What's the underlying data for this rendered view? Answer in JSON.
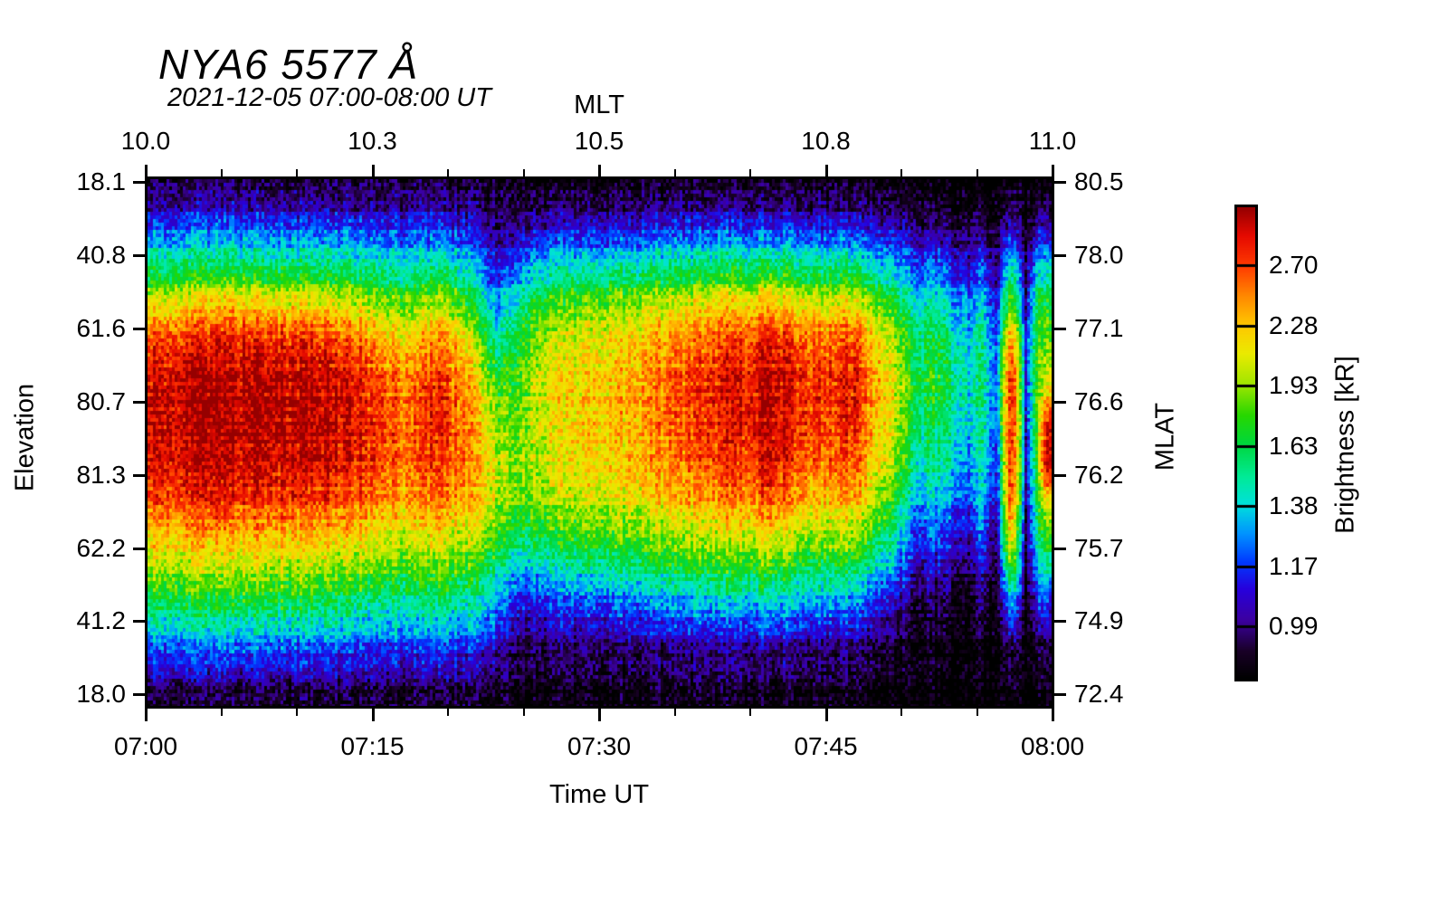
{
  "title": "NYA6 5577 Å",
  "subtitle": "2021-12-05 07:00-08:00 UT",
  "axes": {
    "top": {
      "label": "MLT",
      "ticks": [
        "10.0",
        "10.3",
        "10.5",
        "10.8",
        "11.0"
      ]
    },
    "bottom": {
      "label": "Time UT",
      "ticks": [
        "07:00",
        "07:15",
        "07:30",
        "07:45",
        "08:00"
      ]
    },
    "left": {
      "label": "Elevation",
      "ticks": [
        "18.1",
        "40.8",
        "61.6",
        "80.7",
        "81.3",
        "62.2",
        "41.2",
        "18.0"
      ]
    },
    "right": {
      "label": "MLAT",
      "ticks": [
        "80.5",
        "78.0",
        "77.1",
        "76.6",
        "76.2",
        "75.7",
        "74.9",
        "72.4"
      ]
    }
  },
  "colorbar": {
    "label": "Brightness [kR]",
    "ticks": [
      "2.70",
      "2.28",
      "1.93",
      "1.63",
      "1.38",
      "1.17",
      "0.99"
    ],
    "scale": "log",
    "range_kR": [
      0.85,
      3.2
    ]
  },
  "chart_data": {
    "type": "heatmap",
    "title": "NYA6 5577 Å",
    "xlabel": "Time UT",
    "ylabel": "Elevation",
    "x_start": "07:00",
    "x_end": "08:00",
    "value_units": "kR",
    "value_scale": "log",
    "value_range": [
      0.85,
      3.2
    ],
    "rows": 14,
    "row_order": "top-to-bottom (elevation 18.1 N -> 80.7 zenith -> 18.0 S)",
    "x_minutes": [
      0,
      2,
      4,
      6,
      8,
      10,
      12,
      14,
      16,
      17.5,
      19,
      20.5,
      22,
      23,
      24,
      25,
      26,
      28,
      30,
      32,
      34,
      36,
      38,
      40,
      41.3,
      42.5,
      44,
      45.5,
      46.8,
      48,
      49.5,
      51,
      52.5,
      53.5,
      54.5,
      55.5,
      56.4,
      57.3,
      58.3,
      59.0,
      59.6,
      60
    ],
    "values_kR": [
      [
        0.97,
        1.25,
        1.6,
        2.2,
        2.7,
        2.95,
        3.0,
        2.95,
        2.7,
        2.25,
        1.85,
        1.5,
        1.18,
        0.93
      ],
      [
        0.97,
        1.27,
        1.63,
        2.3,
        2.85,
        3.08,
        3.12,
        3.05,
        2.78,
        2.33,
        1.9,
        1.55,
        1.2,
        0.94
      ],
      [
        0.97,
        1.28,
        1.65,
        2.35,
        2.9,
        3.12,
        3.16,
        3.08,
        2.8,
        2.35,
        1.92,
        1.56,
        1.2,
        0.94
      ],
      [
        0.97,
        1.28,
        1.66,
        2.38,
        2.92,
        3.15,
        3.18,
        3.1,
        2.82,
        2.36,
        1.93,
        1.57,
        1.21,
        0.94
      ],
      [
        0.96,
        1.27,
        1.64,
        2.33,
        2.88,
        3.1,
        3.14,
        3.06,
        2.79,
        2.33,
        1.9,
        1.55,
        1.2,
        0.94
      ],
      [
        0.96,
        1.26,
        1.63,
        2.32,
        2.87,
        3.1,
        3.13,
        3.05,
        2.78,
        2.32,
        1.89,
        1.54,
        1.19,
        0.93
      ],
      [
        0.96,
        1.25,
        1.6,
        2.25,
        2.78,
        3.02,
        3.06,
        3.0,
        2.72,
        2.27,
        1.85,
        1.51,
        1.18,
        0.93
      ],
      [
        0.95,
        1.23,
        1.57,
        2.15,
        2.65,
        2.9,
        2.95,
        2.9,
        2.63,
        2.2,
        1.8,
        1.48,
        1.16,
        0.93
      ],
      [
        0.94,
        1.2,
        1.5,
        1.95,
        2.35,
        2.6,
        2.68,
        2.65,
        2.45,
        2.08,
        1.72,
        1.42,
        1.13,
        0.92
      ],
      [
        0.94,
        1.18,
        1.46,
        1.88,
        2.25,
        2.48,
        2.56,
        2.55,
        2.38,
        2.02,
        1.68,
        1.4,
        1.12,
        0.92
      ],
      [
        0.95,
        1.2,
        1.52,
        2.05,
        2.5,
        2.75,
        2.82,
        2.78,
        2.55,
        2.12,
        1.74,
        1.44,
        1.14,
        0.92
      ],
      [
        0.94,
        1.18,
        1.48,
        1.95,
        2.35,
        2.58,
        2.65,
        2.62,
        2.42,
        2.05,
        1.7,
        1.41,
        1.12,
        0.92
      ],
      [
        0.92,
        1.1,
        1.3,
        1.6,
        1.9,
        2.15,
        2.3,
        2.35,
        2.25,
        1.95,
        1.62,
        1.35,
        1.09,
        0.91
      ],
      [
        0.9,
        1.0,
        1.12,
        1.3,
        1.55,
        1.8,
        2.0,
        2.1,
        2.05,
        1.8,
        1.5,
        1.26,
        1.05,
        0.9
      ],
      [
        0.9,
        1.02,
        1.18,
        1.4,
        1.58,
        1.72,
        1.85,
        1.92,
        1.88,
        1.65,
        1.35,
        1.12,
        0.98,
        0.89
      ],
      [
        0.9,
        1.08,
        1.32,
        1.62,
        1.8,
        1.9,
        1.95,
        1.95,
        1.88,
        1.62,
        1.3,
        1.08,
        0.95,
        0.88
      ],
      [
        0.91,
        1.12,
        1.42,
        1.78,
        1.98,
        2.08,
        2.1,
        2.08,
        1.95,
        1.68,
        1.35,
        1.1,
        0.95,
        0.88
      ],
      [
        0.91,
        1.15,
        1.48,
        1.9,
        2.12,
        2.22,
        2.24,
        2.2,
        2.05,
        1.76,
        1.4,
        1.13,
        0.96,
        0.88
      ],
      [
        0.91,
        1.15,
        1.5,
        1.95,
        2.18,
        2.28,
        2.3,
        2.26,
        2.1,
        1.8,
        1.43,
        1.14,
        0.96,
        0.88
      ],
      [
        0.91,
        1.16,
        1.52,
        2.0,
        2.25,
        2.35,
        2.36,
        2.3,
        2.14,
        1.83,
        1.46,
        1.16,
        0.96,
        0.88
      ],
      [
        0.92,
        1.18,
        1.56,
        2.1,
        2.4,
        2.52,
        2.52,
        2.45,
        2.25,
        1.9,
        1.52,
        1.2,
        0.98,
        0.89
      ],
      [
        0.92,
        1.2,
        1.6,
        2.2,
        2.55,
        2.7,
        2.7,
        2.6,
        2.36,
        1.97,
        1.57,
        1.24,
        0.99,
        0.89
      ],
      [
        0.92,
        1.22,
        1.63,
        2.3,
        2.7,
        2.85,
        2.85,
        2.74,
        2.45,
        2.03,
        1.61,
        1.26,
        1.0,
        0.9
      ],
      [
        0.93,
        1.23,
        1.65,
        2.35,
        2.8,
        2.95,
        2.94,
        2.82,
        2.52,
        2.07,
        1.63,
        1.27,
        1.0,
        0.9
      ],
      [
        0.93,
        1.25,
        1.72,
        2.5,
        3.0,
        3.18,
        3.18,
        3.08,
        2.75,
        2.22,
        1.7,
        1.3,
        1.01,
        0.9
      ],
      [
        0.92,
        1.22,
        1.64,
        2.32,
        2.76,
        2.92,
        2.9,
        2.78,
        2.48,
        2.04,
        1.61,
        1.25,
        0.99,
        0.89
      ],
      [
        0.92,
        1.2,
        1.6,
        2.24,
        2.65,
        2.8,
        2.78,
        2.66,
        2.38,
        1.97,
        1.56,
        1.22,
        0.97,
        0.89
      ],
      [
        0.91,
        1.18,
        1.56,
        2.16,
        2.55,
        2.7,
        2.68,
        2.56,
        2.28,
        1.9,
        1.51,
        1.18,
        0.95,
        0.88
      ],
      [
        0.91,
        1.19,
        1.6,
        2.28,
        2.75,
        2.92,
        2.88,
        2.72,
        2.4,
        1.96,
        1.53,
        1.19,
        0.95,
        0.88
      ],
      [
        0.9,
        1.14,
        1.48,
        2.0,
        2.32,
        2.45,
        2.42,
        2.3,
        2.05,
        1.72,
        1.38,
        1.1,
        0.92,
        0.87
      ],
      [
        0.89,
        1.1,
        1.38,
        1.78,
        2.02,
        2.12,
        2.08,
        1.97,
        1.76,
        1.5,
        1.24,
        1.02,
        0.89,
        0.86
      ],
      [
        0.87,
        1.03,
        1.22,
        1.45,
        1.58,
        1.63,
        1.58,
        1.48,
        1.32,
        1.15,
        1.0,
        0.89,
        0.86,
        0.85
      ],
      [
        0.86,
        1.02,
        1.25,
        1.5,
        1.62,
        1.68,
        1.62,
        1.52,
        1.38,
        1.2,
        1.02,
        0.9,
        0.85,
        0.84
      ],
      [
        0.85,
        0.98,
        1.15,
        1.35,
        1.48,
        1.52,
        1.48,
        1.4,
        1.26,
        1.1,
        0.96,
        0.87,
        0.84,
        0.84
      ],
      [
        0.85,
        0.96,
        1.1,
        1.28,
        1.38,
        1.42,
        1.4,
        1.32,
        1.18,
        1.04,
        0.92,
        0.86,
        0.84,
        0.84
      ],
      [
        0.86,
        1.0,
        1.2,
        1.4,
        1.5,
        1.55,
        1.52,
        1.45,
        1.35,
        1.2,
        1.05,
        0.92,
        0.86,
        0.84
      ],
      [
        0.84,
        0.9,
        0.98,
        1.08,
        1.15,
        1.18,
        1.16,
        1.1,
        1.02,
        0.94,
        0.88,
        0.85,
        0.84,
        0.84
      ],
      [
        0.88,
        1.15,
        1.55,
        2.0,
        2.6,
        2.9,
        2.95,
        2.9,
        2.75,
        2.3,
        1.7,
        1.25,
        0.95,
        0.86
      ],
      [
        0.84,
        0.89,
        0.95,
        1.02,
        1.08,
        1.1,
        1.08,
        1.04,
        0.98,
        0.92,
        0.87,
        0.85,
        0.84,
        0.84
      ],
      [
        0.87,
        1.05,
        1.35,
        1.6,
        1.72,
        1.78,
        1.75,
        1.7,
        1.6,
        1.45,
        1.25,
        1.05,
        0.88,
        0.85
      ],
      [
        0.87,
        1.08,
        1.4,
        1.7,
        1.85,
        2.0,
        2.75,
        3.05,
        2.1,
        1.7,
        1.4,
        1.08,
        0.89,
        0.85
      ],
      [
        0.86,
        1.05,
        1.35,
        1.65,
        1.8,
        2.1,
        2.9,
        3.1,
        2.2,
        1.65,
        1.35,
        1.05,
        0.88,
        0.84
      ]
    ],
    "colormap_stops": [
      [
        0.0,
        "#000000"
      ],
      [
        0.06,
        "#1a0028"
      ],
      [
        0.125,
        "#3c00a0"
      ],
      [
        0.19,
        "#2800dc"
      ],
      [
        0.25,
        "#003cff"
      ],
      [
        0.31,
        "#0096ff"
      ],
      [
        0.37,
        "#00e1dc"
      ],
      [
        0.43,
        "#00eb96"
      ],
      [
        0.5,
        "#00d73c"
      ],
      [
        0.56,
        "#28d700"
      ],
      [
        0.625,
        "#a0e600"
      ],
      [
        0.69,
        "#ebeb00"
      ],
      [
        0.75,
        "#ffc800"
      ],
      [
        0.81,
        "#ff8c00"
      ],
      [
        0.875,
        "#ff3c00"
      ],
      [
        0.94,
        "#e60a00"
      ],
      [
        1.0,
        "#960000"
      ]
    ],
    "legend_position": "right colorbar",
    "grid": false
  }
}
